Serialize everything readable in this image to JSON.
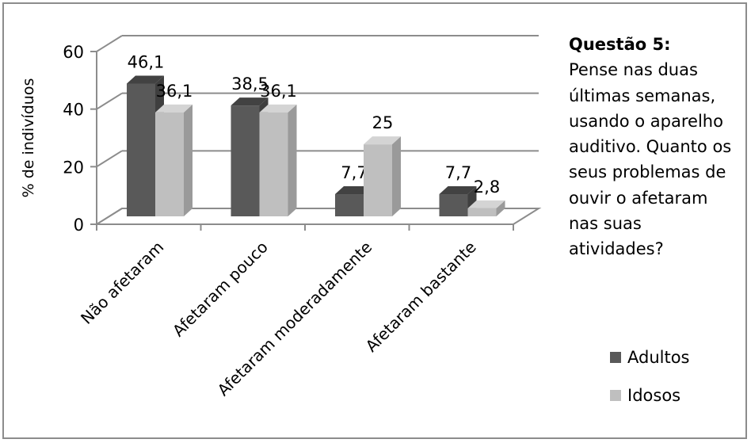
{
  "colors": {
    "adultos_front": "#595959",
    "adultos_side": "#3f3f3f",
    "adultos_top": "#424242",
    "idosos_front": "#bfbfbf",
    "idosos_side": "#9a9a9a",
    "idosos_top": "#d4d4d4",
    "grid": "#8c8c8c",
    "frame": "#8c8c8c"
  },
  "question": {
    "title": "Questão 5:",
    "text": "Pense nas duas últimas semanas, usando o aparelho auditivo. Quanto os seus problemas de ouvir o afetaram nas suas atividades?"
  },
  "chart_data": {
    "type": "bar",
    "subtype": "3d-clustered-column",
    "title": "",
    "xlabel": "",
    "ylabel": "% de indivíduos",
    "ylim": [
      0,
      60
    ],
    "yticks": [
      0,
      20,
      40,
      60
    ],
    "grid": true,
    "legend_position": "right",
    "categories": [
      "Não afetaram",
      "Afetaram pouco",
      "Afetaram moderadamente",
      "Afetaram bastante"
    ],
    "series": [
      {
        "name": "Adultos",
        "values": [
          46.1,
          38.5,
          7.7,
          7.7
        ],
        "labels": [
          "46,1",
          "38,5",
          "7,7",
          "7,7"
        ]
      },
      {
        "name": "Idosos",
        "values": [
          36.1,
          36.1,
          25,
          2.8
        ],
        "labels": [
          "36,1",
          "36,1",
          "25",
          "2,8"
        ]
      }
    ]
  }
}
